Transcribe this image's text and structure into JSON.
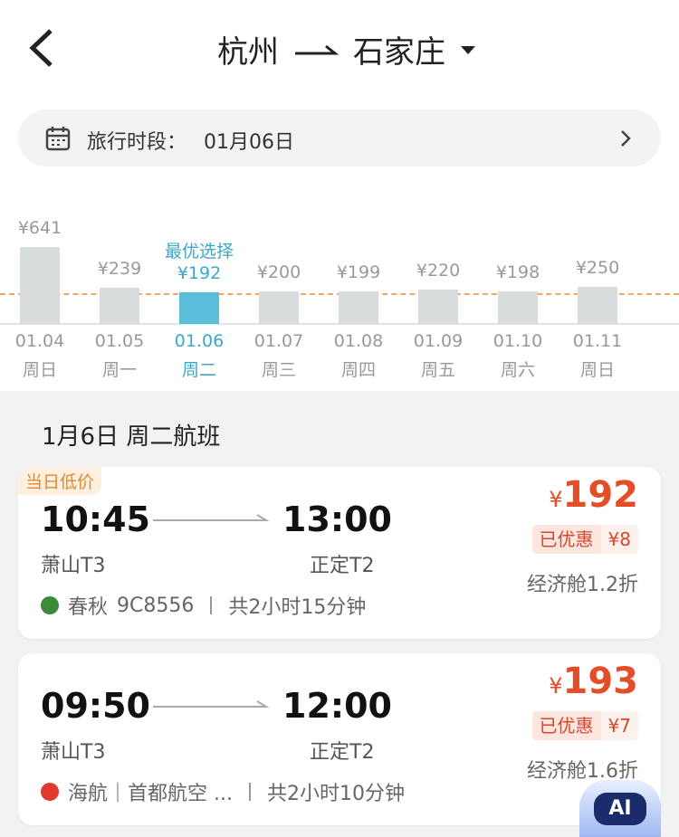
{
  "header": {
    "origin": "杭州",
    "destination": "石家庄"
  },
  "search_bar": {
    "label": "旅行时段：",
    "value": "01月06日"
  },
  "price_calendar": {
    "best_label": "最优选择",
    "selected": 2,
    "days": [
      {
        "date": "01.04",
        "weekday": "周日",
        "price": 641,
        "price_label": "¥641"
      },
      {
        "date": "01.05",
        "weekday": "周一",
        "price": 239,
        "price_label": "¥239"
      },
      {
        "date": "01.06",
        "weekday": "周二",
        "price": 192,
        "price_label": "¥192"
      },
      {
        "date": "01.07",
        "weekday": "周三",
        "price": 200,
        "price_label": "¥200"
      },
      {
        "date": "01.08",
        "weekday": "周四",
        "price": 199,
        "price_label": "¥199"
      },
      {
        "date": "01.09",
        "weekday": "周五",
        "price": 220,
        "price_label": "¥220"
      },
      {
        "date": "01.10",
        "weekday": "周六",
        "price": 198,
        "price_label": "¥198"
      },
      {
        "date": "01.11",
        "weekday": "周日",
        "price": 250,
        "price_label": "¥250"
      }
    ]
  },
  "section_title": "1月6日 周二航班",
  "flights": [
    {
      "tag": "当日低价",
      "depart_time": "10:45",
      "arrive_time": "13:00",
      "depart_airport": "萧山T3",
      "arrive_airport": "正定T2",
      "airline": "春秋",
      "flight_no": "9C8556",
      "duration": "共2小时15分钟",
      "currency": "¥",
      "price": 192,
      "discount_text": "已优惠",
      "discount_label": "¥8",
      "cabin": "经济舱1.2折"
    },
    {
      "depart_time": "09:50",
      "arrive_time": "12:00",
      "depart_airport": "萧山T3",
      "arrive_airport": "正定T2",
      "airline": "海航｜首都航空 ...",
      "duration": "共2小时10分钟",
      "currency": "¥",
      "price": 193,
      "discount_text": "已优惠",
      "discount_label": "¥7",
      "cabin": "经济舱1.6折"
    }
  ],
  "assistant_badge": "AI"
}
